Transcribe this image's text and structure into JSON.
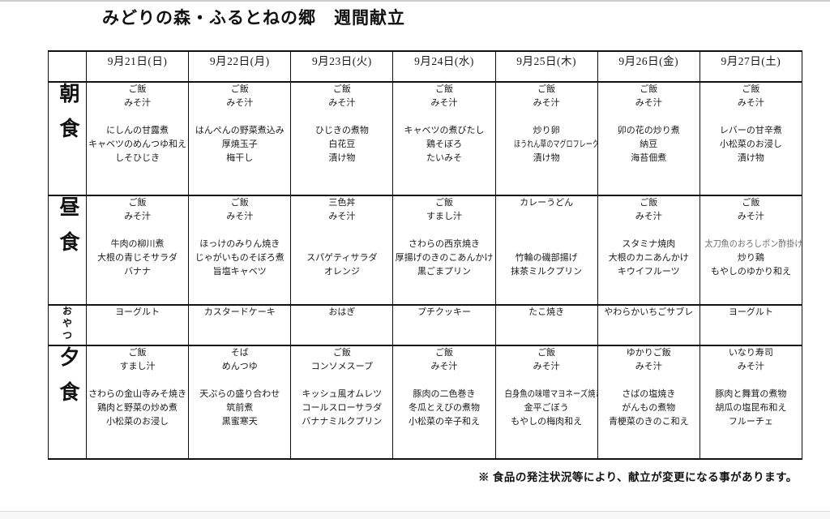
{
  "title": "みどりの森・ふるとねの郷　週間献立",
  "table": {
    "dates": [
      "9月21日(日)",
      "9月22日(月)",
      "9月23日(火)",
      "9月24日(水)",
      "9月25日(木)",
      "9月26日(金)",
      "9月27日(土)"
    ],
    "rows": [
      {
        "label": "朝食",
        "type": "meal",
        "cells": [
          {
            "top": [
              "ご飯",
              "みそ汁"
            ],
            "dishes": [
              "にしんの甘露煮",
              "キャベツのめんつゆ和え",
              "しそひじき"
            ]
          },
          {
            "top": [
              "ご飯",
              "みそ汁"
            ],
            "dishes": [
              "はんぺんの野菜煮込み",
              "厚焼玉子",
              "梅干し"
            ]
          },
          {
            "top": [
              "ご飯",
              "みそ汁"
            ],
            "dishes": [
              "ひじきの煮物",
              "白花豆",
              "漬け物"
            ]
          },
          {
            "top": [
              "ご飯",
              "みそ汁"
            ],
            "dishes": [
              "キャベツの煮びたし",
              "鶏そぼろ",
              "たいみそ"
            ]
          },
          {
            "top": [
              "ご飯",
              "みそ汁"
            ],
            "dishes": [
              "炒り卵",
              "ほうれん草のマグロフレーク和え",
              "漬け物"
            ]
          },
          {
            "top": [
              "ご飯",
              "みそ汁"
            ],
            "dishes": [
              "卯の花の炒り煮",
              "納豆",
              "海苔佃煮"
            ]
          },
          {
            "top": [
              "ご飯",
              "みそ汁"
            ],
            "dishes": [
              "レバーの甘辛煮",
              "小松菜のお浸し",
              "漬け物"
            ]
          }
        ]
      },
      {
        "label": "昼食",
        "type": "meal",
        "cells": [
          {
            "top": [
              "ご飯",
              "みそ汁"
            ],
            "dishes": [
              "牛肉の柳川煮",
              "大根の青じそサラダ",
              "バナナ"
            ]
          },
          {
            "top": [
              "ご飯",
              "みそ汁"
            ],
            "dishes": [
              "ほっけのみりん焼き",
              "じゃがいものそぼろ煮",
              "旨塩キャベツ"
            ]
          },
          {
            "top": [
              "三色丼",
              "みそ汁"
            ],
            "dishes": [
              "",
              "スパゲティサラダ",
              "オレンジ"
            ]
          },
          {
            "top": [
              "ご飯",
              "すまし汁"
            ],
            "dishes": [
              "さわらの西京焼き",
              "厚揚げのきのこあんかけ",
              "黒ごまプリン"
            ]
          },
          {
            "top": [
              "カレーうどん",
              ""
            ],
            "dishes": [
              "",
              "竹輪の磯部揚げ",
              "抹茶ミルクプリン"
            ]
          },
          {
            "top": [
              "ご飯",
              "みそ汁"
            ],
            "dishes": [
              "スタミナ焼肉",
              "大根のカニあんかけ",
              "キウイフルーツ"
            ]
          },
          {
            "top": [
              "ご飯",
              "みそ汁"
            ],
            "dishes": [
              {
                "text": "太刀魚のおろしポン酢掛け",
                "color": "#6e6e6e"
              },
              "炒り鶏",
              "もやしのゆかり和え"
            ]
          }
        ]
      },
      {
        "label": "おやつ",
        "type": "snack",
        "cells": [
          "ヨーグルト",
          "カスタードケーキ",
          "おはぎ",
          "プチクッキー",
          "たこ焼き",
          "やわらかいちごサブレ",
          "ヨーグルト"
        ]
      },
      {
        "label": "夕食",
        "type": "meal",
        "cells": [
          {
            "top": [
              "ご飯",
              "すまし汁"
            ],
            "dishes": [
              "さわらの金山寺みそ焼き",
              "鶏肉と野菜の炒め煮",
              "小松菜のお浸し"
            ]
          },
          {
            "top": [
              "そば",
              "めんつゆ"
            ],
            "dishes": [
              "天ぷらの盛り合わせ",
              "筑前煮",
              "黒蜜寒天"
            ]
          },
          {
            "top": [
              "ご飯",
              "コンソメスープ"
            ],
            "dishes": [
              "キッシュ風オムレツ",
              "コールスローサラダ",
              "バナナミルクプリン"
            ]
          },
          {
            "top": [
              "ご飯",
              "みそ汁"
            ],
            "dishes": [
              "豚肉の二色巻き",
              "冬瓜とえびの煮物",
              "小松菜の辛子和え"
            ]
          },
          {
            "top": [
              "ご飯",
              "みそ汁"
            ],
            "dishes": [
              "白身魚の味噌マヨネーズ焼き",
              "金平ごぼう",
              "もやしの梅肉和え"
            ]
          },
          {
            "top": [
              "ゆかりご飯",
              "みそ汁"
            ],
            "dishes": [
              "さばの塩焼き",
              "がんもの煮物",
              "青梗菜のきのこ和え"
            ]
          },
          {
            "top": [
              "いなり寿司",
              "みそ汁"
            ],
            "dishes": [
              "豚肉と舞茸の煮物",
              "胡瓜の塩昆布和え",
              "フルーチェ"
            ]
          }
        ]
      }
    ]
  },
  "footer_note": "※ 食品の発注状況等により、献立が変更になる事があります。"
}
